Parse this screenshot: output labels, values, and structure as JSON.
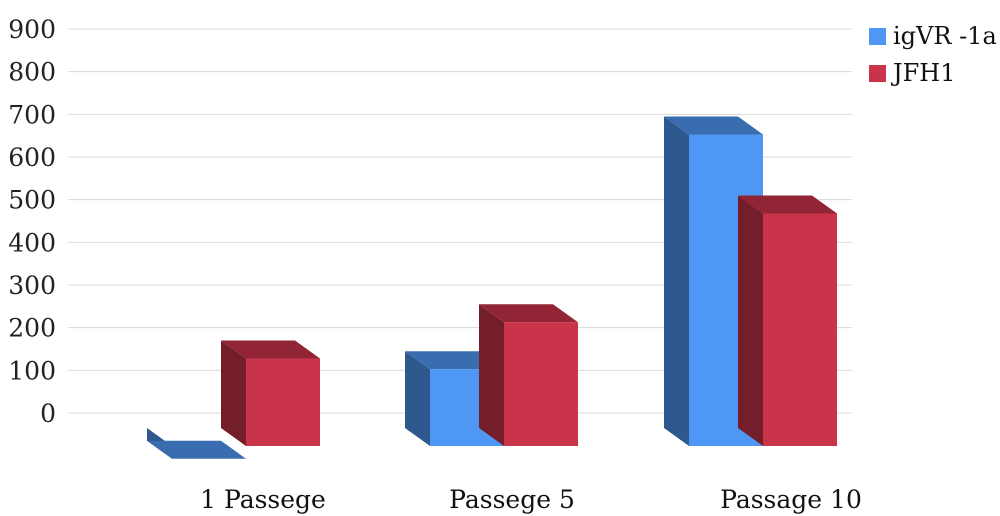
{
  "chart_data": {
    "type": "bar",
    "subtype": "3d-clustered",
    "categories": [
      "1 Passege",
      "Passege 5",
      "Passage 10"
    ],
    "series": [
      {
        "name": "igVR -1a",
        "values": [
          -30,
          180,
          730
        ],
        "color": "#4f97f5"
      },
      {
        "name": "JFH1",
        "values": [
          205,
          290,
          545
        ],
        "color": "#c9344a"
      }
    ],
    "yticks": [
      0,
      100,
      200,
      300,
      400,
      500,
      600,
      700,
      800,
      900
    ],
    "ylim": [
      0,
      900
    ],
    "grid": true,
    "legend": "top-right",
    "title": "",
    "xlabel": "",
    "ylabel": ""
  }
}
